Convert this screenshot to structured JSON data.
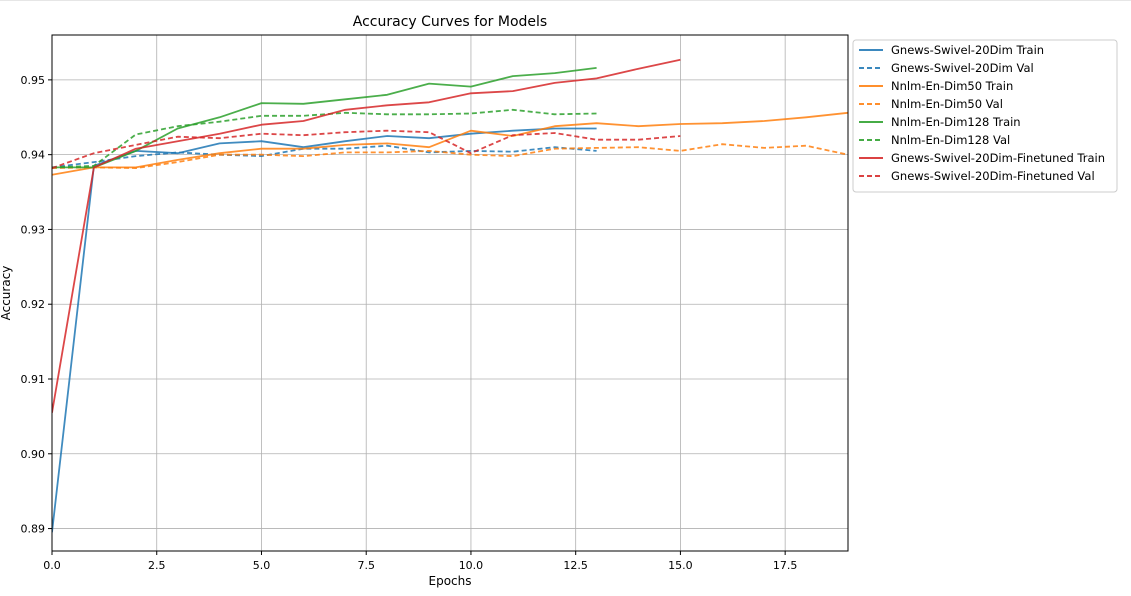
{
  "chart_data": {
    "type": "line",
    "title": "Accuracy Curves for Models",
    "xlabel": "Epochs",
    "ylabel": "Accuracy",
    "xlim": [
      0,
      19
    ],
    "ylim": [
      0.887,
      0.956
    ],
    "xticks": [
      0,
      2.5,
      5,
      7.5,
      10,
      12.5,
      15,
      17.5
    ],
    "xtick_labels": [
      "0.0",
      "2.5",
      "5.0",
      "7.5",
      "10.0",
      "12.5",
      "15.0",
      "17.5"
    ],
    "yticks": [
      0.89,
      0.9,
      0.91,
      0.92,
      0.93,
      0.94,
      0.95
    ],
    "ytick_labels": [
      "0.89",
      "0.90",
      "0.91",
      "0.92",
      "0.93",
      "0.94",
      "0.95"
    ],
    "grid": true,
    "legend_position": "outside-right-top",
    "series": [
      {
        "name": "Gnews-Swivel-20Dim Train",
        "color": "#1f77b4",
        "style": "solid",
        "x": [
          0,
          1,
          2,
          3,
          4,
          5,
          6,
          7,
          8,
          9,
          10,
          11,
          12,
          13
        ],
        "values": [
          0.8895,
          0.9385,
          0.9405,
          0.9402,
          0.9415,
          0.9418,
          0.941,
          0.9418,
          0.9425,
          0.9422,
          0.9428,
          0.9432,
          0.9435,
          0.9435
        ]
      },
      {
        "name": "Gnews-Swivel-20Dim Val",
        "color": "#1f77b4",
        "style": "dashed",
        "x": [
          0,
          1,
          2,
          3,
          4,
          5,
          6,
          7,
          8,
          9,
          10,
          11,
          12,
          13
        ],
        "values": [
          0.9383,
          0.939,
          0.9398,
          0.9403,
          0.94,
          0.9398,
          0.9408,
          0.9408,
          0.9412,
          0.9403,
          0.9405,
          0.9404,
          0.941,
          0.9405
        ]
      },
      {
        "name": "Nnlm-En-Dim50 Train",
        "color": "#ff7f0e",
        "style": "solid",
        "x": [
          0,
          1,
          2,
          3,
          4,
          5,
          6,
          7,
          8,
          9,
          10,
          11,
          12,
          13,
          14,
          15,
          16,
          17,
          18,
          19
        ],
        "values": [
          0.9373,
          0.9383,
          0.9383,
          0.9393,
          0.9402,
          0.9408,
          0.9408,
          0.9413,
          0.9415,
          0.941,
          0.9432,
          0.9425,
          0.9438,
          0.9442,
          0.9438,
          0.9441,
          0.9442,
          0.9445,
          0.945,
          0.9456
        ]
      },
      {
        "name": "Nnlm-En-Dim50 Val",
        "color": "#ff7f0e",
        "style": "dashed",
        "x": [
          0,
          1,
          2,
          3,
          4,
          5,
          6,
          7,
          8,
          9,
          10,
          11,
          12,
          13,
          14,
          15,
          16,
          17,
          18,
          19
        ],
        "values": [
          0.9382,
          0.9383,
          0.9382,
          0.939,
          0.94,
          0.94,
          0.9398,
          0.9403,
          0.9403,
          0.9405,
          0.94,
          0.9398,
          0.9408,
          0.9409,
          0.941,
          0.9405,
          0.9414,
          0.9409,
          0.9412,
          0.94
        ]
      },
      {
        "name": "Nnlm-En-Dim128 Train",
        "color": "#2ca02c",
        "style": "solid",
        "x": [
          0,
          1,
          2,
          3,
          4,
          5,
          6,
          7,
          8,
          9,
          10,
          11,
          12,
          13
        ],
        "values": [
          0.9383,
          0.9383,
          0.9405,
          0.9435,
          0.945,
          0.9469,
          0.9468,
          0.9474,
          0.948,
          0.9495,
          0.9491,
          0.9505,
          0.9509,
          0.9516
        ]
      },
      {
        "name": "Nnlm-En-Dim128 Val",
        "color": "#2ca02c",
        "style": "dashed",
        "x": [
          0,
          1,
          2,
          3,
          4,
          5,
          6,
          7,
          8,
          9,
          10,
          11,
          12,
          13
        ],
        "values": [
          0.9383,
          0.9385,
          0.9427,
          0.9438,
          0.9444,
          0.9452,
          0.9452,
          0.9456,
          0.9454,
          0.9454,
          0.9455,
          0.946,
          0.9454,
          0.9455
        ]
      },
      {
        "name": "Gnews-Swivel-20Dim-Finetuned Train",
        "color": "#d62728",
        "style": "solid",
        "x": [
          0,
          1,
          2,
          3,
          4,
          5,
          6,
          7,
          8,
          9,
          10,
          11,
          12,
          13,
          14,
          15
        ],
        "values": [
          0.9055,
          0.9383,
          0.9408,
          0.9418,
          0.9428,
          0.944,
          0.9445,
          0.946,
          0.9466,
          0.947,
          0.9482,
          0.9485,
          0.9496,
          0.9502,
          0.9515,
          0.9527
        ]
      },
      {
        "name": "Gnews-Swivel-20Dim-Finetuned Val",
        "color": "#d62728",
        "style": "dashed",
        "x": [
          0,
          1,
          2,
          3,
          4,
          5,
          6,
          7,
          8,
          9,
          10,
          11,
          12,
          13,
          14,
          15
        ],
        "values": [
          0.9382,
          0.9402,
          0.9413,
          0.9424,
          0.9422,
          0.9428,
          0.9426,
          0.943,
          0.9432,
          0.943,
          0.9402,
          0.9426,
          0.9429,
          0.942,
          0.942,
          0.9425
        ]
      }
    ]
  }
}
